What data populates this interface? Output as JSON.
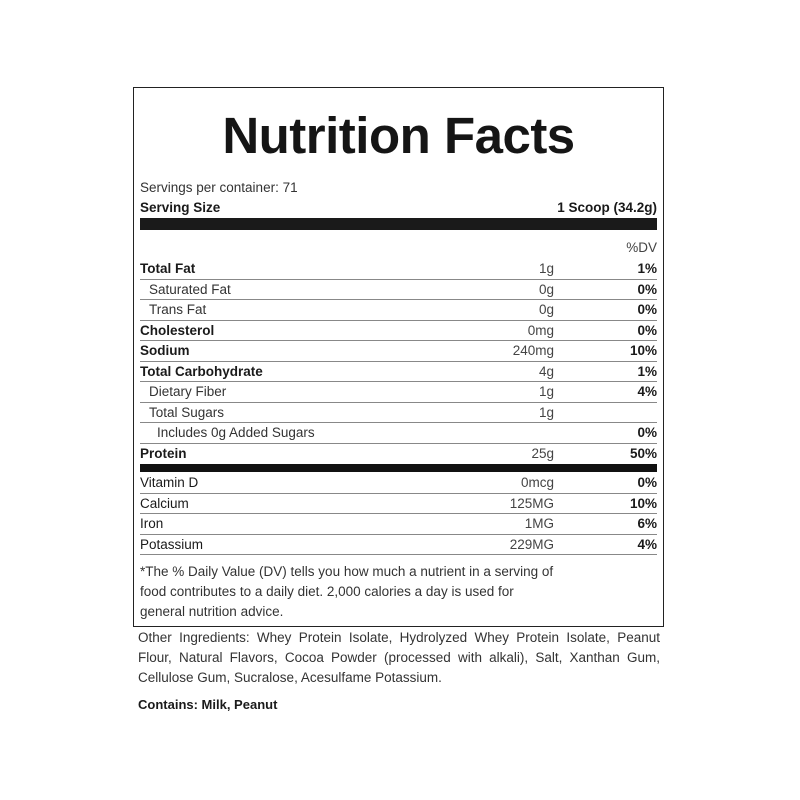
{
  "title": "Nutrition Facts",
  "servings_per_container": "Servings per container: 71",
  "serving_size": {
    "label": "Serving Size",
    "value": "1 Scoop (34.2g)"
  },
  "dv_header": "%DV",
  "nutrients": [
    {
      "name": "Total Fat",
      "amount": "1g",
      "dv": "1%"
    },
    {
      "name": "Saturated Fat",
      "amount": "0g",
      "dv": "0%"
    },
    {
      "name": "Trans Fat",
      "amount": "0g",
      "dv": "0%"
    },
    {
      "name": "Cholesterol",
      "amount": "0mg",
      "dv": "0%"
    },
    {
      "name": "Sodium",
      "amount": "240mg",
      "dv": "10%"
    },
    {
      "name": "Total Carbohydrate",
      "amount": "4g",
      "dv": "1%"
    },
    {
      "name": "Dietary Fiber",
      "amount": "1g",
      "dv": "4%"
    },
    {
      "name": "Total Sugars",
      "amount": "1g",
      "dv": ""
    },
    {
      "name": "Includes 0g Added Sugars",
      "amount": "",
      "dv": "0%"
    },
    {
      "name": "Protein",
      "amount": "25g",
      "dv": "50%"
    }
  ],
  "vitamins": [
    {
      "name": "Vitamin D",
      "amount": "0mcg",
      "dv": "0%"
    },
    {
      "name": "Calcium",
      "amount": "125MG",
      "dv": "10%"
    },
    {
      "name": "Iron",
      "amount": "1MG",
      "dv": "6%"
    },
    {
      "name": "Potassium",
      "amount": "229MG",
      "dv": "4%"
    }
  ],
  "footnote": "*The % Daily Value (DV) tells you how much a nutrient in a serving of food contributes to a daily diet. 2,000 calories a day is used for general nutrition advice.",
  "other_ingredients": "Other Ingredients: Whey Protein Isolate, Hydrolyzed Whey Protein Isolate, Peanut Flour, Natural Flavors, Cocoa Powder (processed with alkali), Salt, Xanthan Gum, Cellulose Gum, Sucralose, Acesulfame Potassium.",
  "contains": "Contains: Milk, Peanut"
}
